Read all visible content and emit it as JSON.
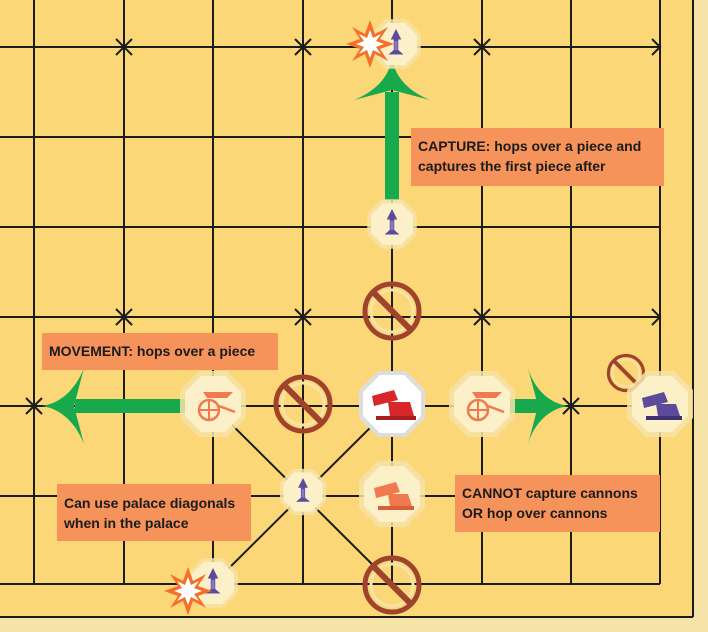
{
  "labels": {
    "capture": "CAPTURE: hops over a piece and\ncaptures the first piece after",
    "movement": "MOVEMENT: hops over a piece",
    "palace": "Can use palace diagonals\nwhen in the palace",
    "cannot": "CANNOT capture cannons\nOR hop over cannons"
  },
  "colors": {
    "board": "#fbd777",
    "line": "#1c1c1c",
    "arrow": "#18a94c",
    "label_bg": "#f5935a",
    "forbidden": "#a0432c",
    "piece_face": "#fcf0c8",
    "piece_rim": "#f6e3a8",
    "red_piece": "#d9262a",
    "orange_piece": "#ef7a50",
    "purple_piece": "#5c4a9a",
    "burst": "#f3702b"
  },
  "pieces": [
    {
      "kind": "purple-soldier",
      "note": "captured target"
    },
    {
      "kind": "purple-soldier",
      "note": "screen piece"
    },
    {
      "kind": "orange-chariot",
      "note": "hopped piece left"
    },
    {
      "kind": "red-cannon",
      "note": "active cannon"
    },
    {
      "kind": "orange-chariot",
      "note": "hopped piece right"
    },
    {
      "kind": "purple-cannon",
      "note": "blocked cannon"
    },
    {
      "kind": "purple-soldier",
      "note": "palace screen"
    },
    {
      "kind": "orange-cannon",
      "note": "blocked cannon"
    },
    {
      "kind": "purple-soldier",
      "note": "palace capture target"
    }
  ]
}
